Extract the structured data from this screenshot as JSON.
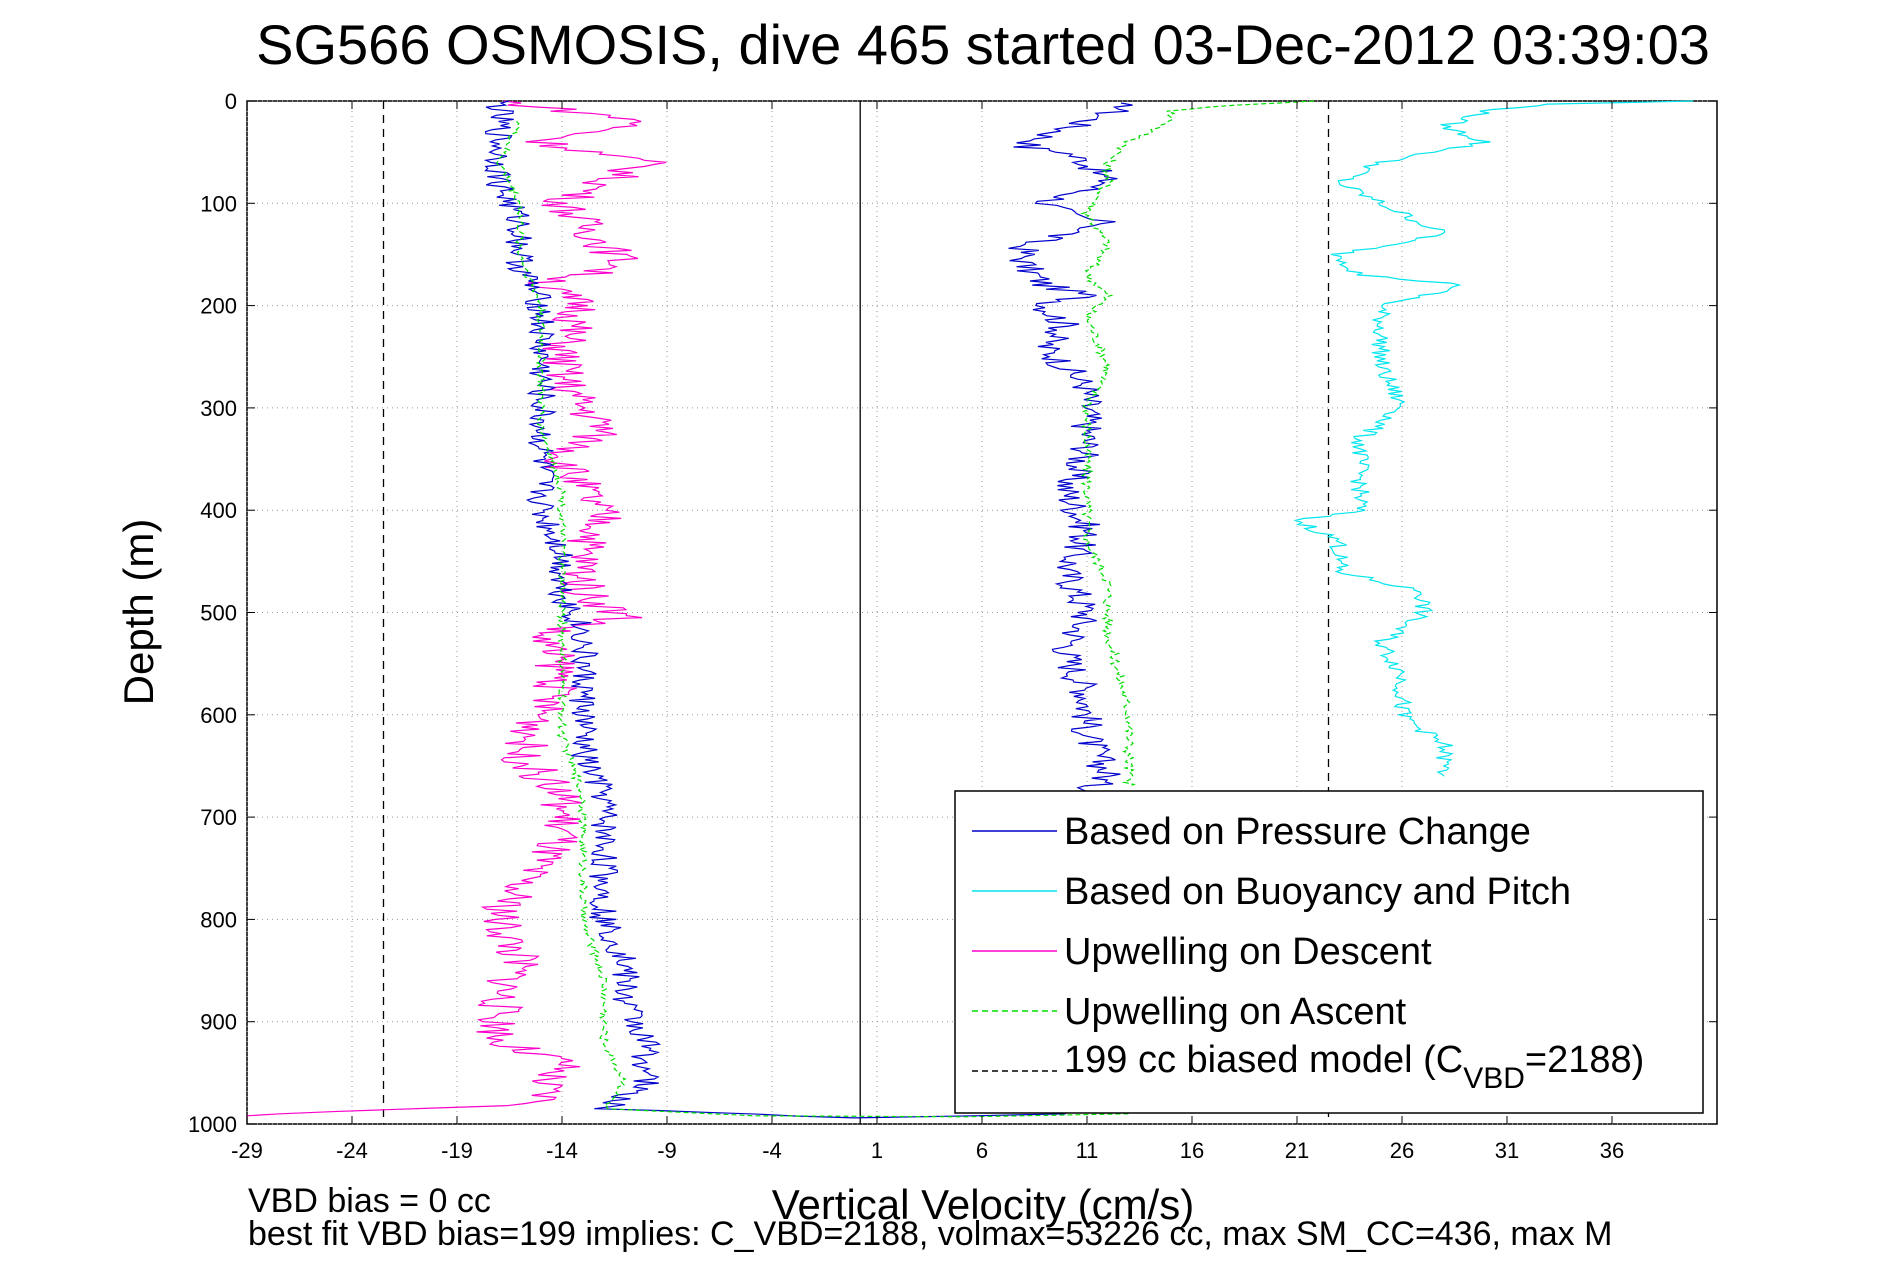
{
  "chart_data": {
    "type": "line",
    "title": "SG566 OSMOSIS, dive 465 started 03-Dec-2012 03:39:03",
    "xlabel": "Vertical Velocity (cm/s)",
    "ylabel": "Depth (m)",
    "xlim": [
      -29,
      41
    ],
    "ylim": [
      0,
      1000
    ],
    "y_reversed": true,
    "grid": true,
    "xticks": [
      -29,
      -24,
      -19,
      -14,
      -9,
      -4,
      1,
      6,
      11,
      16,
      21,
      26,
      31,
      36
    ],
    "yticks": [
      0,
      100,
      200,
      300,
      400,
      500,
      600,
      700,
      800,
      900,
      1000
    ],
    "legend_position": "bottom-right",
    "annotations": [
      "VBD bias = 0 cc",
      "best fit VBD bias=199 implies: C_VBD=2188, volmax=53226 cc, max SM_CC=436, max M"
    ],
    "vertical_lines": [
      {
        "x": 0.2,
        "style": "solid",
        "color": "#000000"
      },
      {
        "x": -22.5,
        "style": "dashed",
        "color": "#000000"
      },
      {
        "x": 22.5,
        "style": "dashed",
        "color": "#000000"
      }
    ],
    "series": [
      {
        "name": "Based on Pressure Change",
        "color": "#0000cc",
        "style": "solid",
        "points": [
          [
            12,
            2
          ],
          [
            13,
            6
          ],
          [
            12,
            12
          ],
          [
            11,
            20
          ],
          [
            9,
            35
          ],
          [
            8,
            45
          ],
          [
            10,
            50
          ],
          [
            11,
            60
          ],
          [
            12,
            80
          ],
          [
            9,
            100
          ],
          [
            10,
            110
          ],
          [
            12,
            120
          ],
          [
            8,
            140
          ],
          [
            8,
            160
          ],
          [
            9,
            180
          ],
          [
            11,
            190
          ],
          [
            9,
            200
          ],
          [
            10,
            220
          ],
          [
            9,
            240
          ],
          [
            10,
            260
          ],
          [
            11,
            280
          ],
          [
            11,
            300
          ],
          [
            11,
            340
          ],
          [
            10,
            380
          ],
          [
            11,
            420
          ],
          [
            10,
            460
          ],
          [
            11,
            500
          ],
          [
            10,
            540
          ],
          [
            11,
            580
          ],
          [
            11,
            620
          ],
          [
            12,
            660
          ],
          [
            11,
            675
          ]
        ]
      },
      {
        "name": "Upwelling on Ascent",
        "color": "#00dd00",
        "style": "dashed",
        "points": [
          [
            22,
            0
          ],
          [
            18,
            4
          ],
          [
            15,
            10
          ],
          [
            15,
            20
          ],
          [
            13,
            40
          ],
          [
            12,
            60
          ],
          [
            12,
            80
          ],
          [
            11,
            110
          ],
          [
            12,
            140
          ],
          [
            11,
            170
          ],
          [
            12,
            190
          ],
          [
            11,
            210
          ],
          [
            12,
            260
          ],
          [
            11,
            300
          ],
          [
            11,
            360
          ],
          [
            11,
            430
          ],
          [
            12,
            470
          ],
          [
            12,
            520
          ],
          [
            13,
            600
          ],
          [
            13,
            640
          ],
          [
            13,
            670
          ]
        ]
      },
      {
        "name": "Based on Buoyancy and Pitch",
        "color": "#00e5ee",
        "style": "solid",
        "points": [
          [
            40,
            0
          ],
          [
            33,
            3
          ],
          [
            30,
            10
          ],
          [
            28,
            25
          ],
          [
            30,
            40
          ],
          [
            25,
            60
          ],
          [
            23,
            80
          ],
          [
            25,
            100
          ],
          [
            26,
            110
          ],
          [
            28,
            130
          ],
          [
            23,
            150
          ],
          [
            24,
            170
          ],
          [
            29,
            180
          ],
          [
            25,
            200
          ],
          [
            25,
            220
          ],
          [
            25,
            260
          ],
          [
            26,
            300
          ],
          [
            24,
            330
          ],
          [
            24,
            370
          ],
          [
            24,
            400
          ],
          [
            21,
            410
          ],
          [
            23,
            430
          ],
          [
            23,
            460
          ],
          [
            27,
            480
          ],
          [
            27,
            500
          ],
          [
            25,
            530
          ],
          [
            26,
            560
          ],
          [
            26,
            600
          ],
          [
            28,
            630
          ],
          [
            28,
            660
          ]
        ]
      },
      {
        "name": "Upwelling on Descent",
        "color": "#ff00cc",
        "style": "solid",
        "points": [
          [
            -17,
            0
          ],
          [
            -10,
            20
          ],
          [
            -15,
            40
          ],
          [
            -10,
            60
          ],
          [
            -12,
            80
          ],
          [
            -14,
            100
          ],
          [
            -13,
            120
          ],
          [
            -12,
            140
          ],
          [
            -11,
            160
          ],
          [
            -15,
            180
          ],
          [
            -13,
            200
          ],
          [
            -14,
            240
          ],
          [
            -14,
            270
          ],
          [
            -13,
            300
          ],
          [
            -12,
            320
          ],
          [
            -14,
            350
          ],
          [
            -13,
            380
          ],
          [
            -12,
            410
          ],
          [
            -13,
            440
          ],
          [
            -13,
            480
          ],
          [
            -11,
            505
          ],
          [
            -15,
            520
          ],
          [
            -14,
            560
          ],
          [
            -15,
            600
          ],
          [
            -16,
            640
          ],
          [
            -14,
            680
          ],
          [
            -14,
            720
          ],
          [
            -16,
            760
          ],
          [
            -17,
            800
          ],
          [
            -16,
            840
          ],
          [
            -17,
            880
          ],
          [
            -17,
            920
          ],
          [
            -14,
            940
          ],
          [
            -15,
            960
          ],
          [
            -15,
            980
          ],
          [
            -29,
            992
          ]
        ]
      },
      {
        "name": "Based on Pressure Change (lower)",
        "color": "#0000cc",
        "style": "solid",
        "points": [
          [
            -17,
            0
          ],
          [
            -17,
            40
          ],
          [
            -17,
            80
          ],
          [
            -16,
            120
          ],
          [
            -16,
            160
          ],
          [
            -15,
            200
          ],
          [
            -15,
            240
          ],
          [
            -15,
            280
          ],
          [
            -15,
            320
          ],
          [
            -15,
            360
          ],
          [
            -15,
            400
          ],
          [
            -14,
            440
          ],
          [
            -14,
            480
          ],
          [
            -13,
            520
          ],
          [
            -13,
            560
          ],
          [
            -13,
            600
          ],
          [
            -13,
            640
          ],
          [
            -12,
            680
          ],
          [
            -12,
            720
          ],
          [
            -12,
            760
          ],
          [
            -12,
            800
          ],
          [
            -11,
            840
          ],
          [
            -11,
            880
          ],
          [
            -10,
            920
          ],
          [
            -10,
            960
          ],
          [
            -12,
            985
          ],
          [
            0,
            994
          ],
          [
            10,
            990
          ]
        ]
      },
      {
        "name": "Upwelling on Ascent (lower)",
        "color": "#00dd00",
        "style": "dashed",
        "points": [
          [
            -16,
            20
          ],
          [
            -17,
            60
          ],
          [
            -16,
            100
          ],
          [
            -16,
            150
          ],
          [
            -15,
            200
          ],
          [
            -15,
            260
          ],
          [
            -15,
            320
          ],
          [
            -14,
            380
          ],
          [
            -14,
            440
          ],
          [
            -14,
            500
          ],
          [
            -14,
            560
          ],
          [
            -14,
            620
          ],
          [
            -13,
            680
          ],
          [
            -13,
            740
          ],
          [
            -13,
            800
          ],
          [
            -12,
            860
          ],
          [
            -12,
            920
          ],
          [
            -11,
            960
          ],
          [
            -12,
            985
          ],
          [
            -5,
            992
          ],
          [
            5,
            993
          ],
          [
            13,
            990
          ]
        ]
      }
    ]
  },
  "legend": {
    "items": [
      {
        "label": "Based on Pressure Change",
        "color": "#0000cc",
        "style": "solid"
      },
      {
        "label": "Based on Buoyancy and Pitch",
        "color": "#00e5ee",
        "style": "solid"
      },
      {
        "label": "Upwelling on Descent",
        "color": "#ff00cc",
        "style": "solid"
      },
      {
        "label": "Upwelling on Ascent",
        "color": "#00dd00",
        "style": "dashed"
      },
      {
        "label_main": "199 cc biased model (C",
        "label_sub": "VBD",
        "label_tail": "=2188)",
        "color": "#000000",
        "style": "dashed"
      }
    ]
  }
}
